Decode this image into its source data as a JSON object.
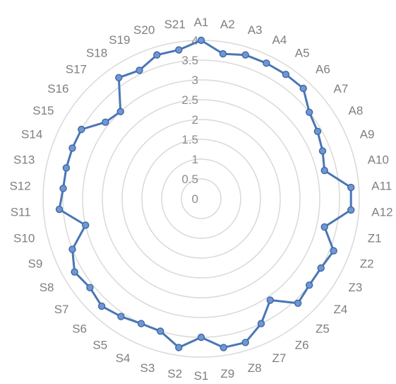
{
  "chart_data": {
    "type": "radar",
    "title": "",
    "rlim": [
      0,
      4
    ],
    "r_ticks": [
      "0",
      "0.5",
      "1",
      "1.5",
      "2",
      "2.5",
      "3",
      "3.5",
      "4"
    ],
    "grid": true,
    "legend": "none",
    "categories": [
      "A1",
      "A2",
      "A3",
      "A4",
      "A5",
      "A6",
      "A7",
      "A8",
      "A9",
      "A10",
      "A11",
      "A12",
      "Z1",
      "Z2",
      "Z3",
      "Z4",
      "Z5",
      "Z6",
      "Z7",
      "Z8",
      "Z9",
      "S1",
      "S2",
      "S3",
      "S4",
      "S5",
      "S6",
      "S7",
      "S8",
      "S9",
      "S10",
      "S11",
      "S12",
      "S13",
      "S14",
      "S15",
      "S16",
      "S17",
      "S18",
      "S19",
      "S20",
      "S21"
    ],
    "series": [
      {
        "values": [
          4.0,
          3.7,
          3.8,
          3.8,
          3.8,
          3.8,
          3.5,
          3.4,
          3.3,
          3.2,
          3.8,
          3.8,
          3.2,
          3.6,
          3.5,
          3.5,
          3.6,
          3.1,
          3.5,
          3.8,
          3.8,
          3.5,
          3.8,
          3.5,
          3.5,
          3.6,
          3.7,
          3.6,
          3.7,
          3.5,
          3.0,
          3.6,
          3.5,
          3.5,
          3.5,
          3.5,
          3.1,
          3.0,
          3.7,
          3.6,
          3.8,
          3.8
        ],
        "color": "#4a76b5"
      }
    ],
    "colors": {
      "line": "#4a76b5",
      "marker_fill": "#6f97d4",
      "marker_stroke": "#3e67a3",
      "grid": "#d9d9d9",
      "label": "#7f7f7f"
    }
  }
}
